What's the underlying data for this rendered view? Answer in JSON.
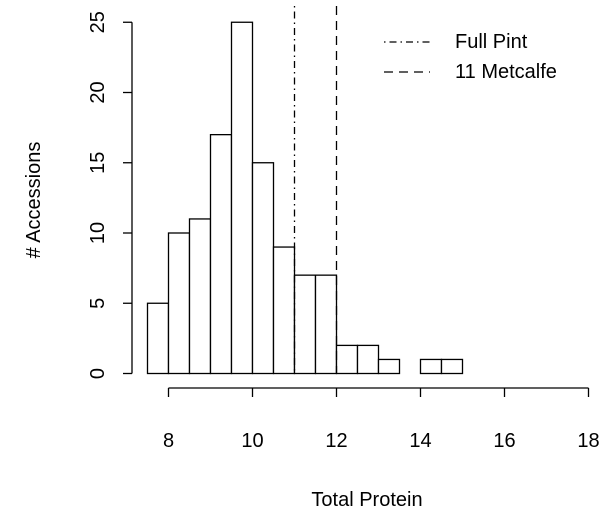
{
  "chart_data": {
    "type": "bar",
    "subtype": "histogram",
    "title": "",
    "xlabel": "Total Protein",
    "ylabel": "# Accessions",
    "bin_width": 0.5,
    "bins": [
      {
        "x0": 7.5,
        "x1": 8.0,
        "count": 5
      },
      {
        "x0": 8.0,
        "x1": 8.5,
        "count": 10
      },
      {
        "x0": 8.5,
        "x1": 9.0,
        "count": 11
      },
      {
        "x0": 9.0,
        "x1": 9.5,
        "count": 17
      },
      {
        "x0": 9.5,
        "x1": 10.0,
        "count": 25
      },
      {
        "x0": 10.0,
        "x1": 10.5,
        "count": 15
      },
      {
        "x0": 10.5,
        "x1": 11.0,
        "count": 9
      },
      {
        "x0": 11.0,
        "x1": 11.5,
        "count": 7
      },
      {
        "x0": 11.5,
        "x1": 12.0,
        "count": 7
      },
      {
        "x0": 12.0,
        "x1": 12.5,
        "count": 2
      },
      {
        "x0": 12.5,
        "x1": 13.0,
        "count": 2
      },
      {
        "x0": 13.0,
        "x1": 13.5,
        "count": 1
      },
      {
        "x0": 13.5,
        "x1": 14.0,
        "count": 0
      },
      {
        "x0": 14.0,
        "x1": 14.5,
        "count": 1
      },
      {
        "x0": 14.5,
        "x1": 15.0,
        "count": 1
      }
    ],
    "xlim": [
      7.5,
      18
    ],
    "ylim": [
      0,
      25
    ],
    "x_ticks": [
      8,
      10,
      12,
      14,
      16,
      18
    ],
    "y_ticks": [
      0,
      5,
      10,
      15,
      20,
      25
    ],
    "reference_lines": [
      {
        "name": "Full Pint",
        "x": 11.0,
        "style": "dotdash"
      },
      {
        "name": "11 Metcalfe",
        "x": 12.0,
        "style": "dashed"
      }
    ],
    "legend": {
      "placement": "top-right",
      "entries": [
        "Full Pint",
        "11 Metcalfe"
      ]
    },
    "grid": false,
    "colors": {
      "bar_fill": "#ffffff",
      "stroke": "#000000"
    }
  }
}
